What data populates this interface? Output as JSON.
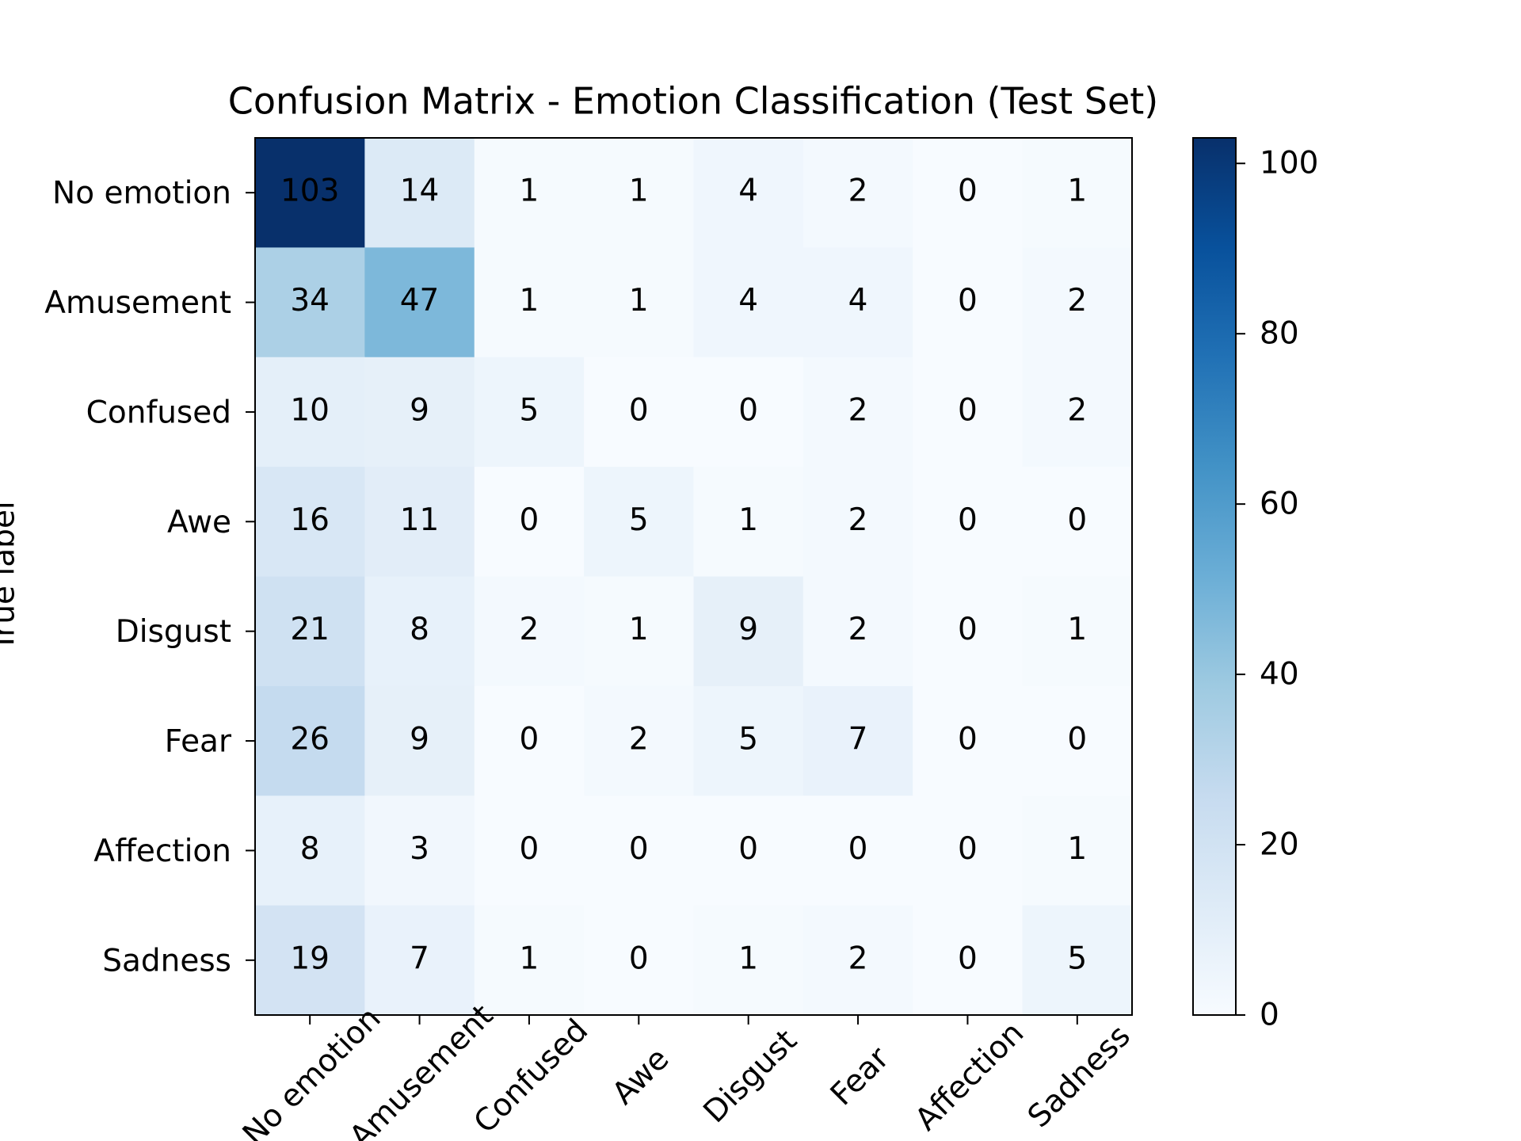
{
  "chart_data": {
    "type": "heatmap",
    "title": "Confusion Matrix - Emotion Classification (Test Set)",
    "ylabel": "True label",
    "x_categories": [
      "No emotion",
      "Amusement",
      "Confused",
      "Awe",
      "Disgust",
      "Fear",
      "Affection",
      "Sadness"
    ],
    "y_categories": [
      "No emotion",
      "Amusement",
      "Confused",
      "Awe",
      "Disgust",
      "Fear",
      "Affection",
      "Sadness"
    ],
    "values": [
      [
        103,
        14,
        1,
        1,
        4,
        2,
        0,
        1
      ],
      [
        34,
        47,
        1,
        1,
        4,
        4,
        0,
        2
      ],
      [
        10,
        9,
        5,
        0,
        0,
        2,
        0,
        2
      ],
      [
        16,
        11,
        0,
        5,
        1,
        2,
        0,
        0
      ],
      [
        21,
        8,
        2,
        1,
        9,
        2,
        0,
        1
      ],
      [
        26,
        9,
        0,
        2,
        5,
        7,
        0,
        0
      ],
      [
        8,
        3,
        0,
        0,
        0,
        0,
        0,
        1
      ],
      [
        19,
        7,
        1,
        0,
        1,
        2,
        0,
        5
      ]
    ],
    "cmap": [
      "#f7fbff",
      "#deebf7",
      "#c6dbef",
      "#9ecae1",
      "#6baed6",
      "#4292c6",
      "#2171b5",
      "#08519c",
      "#08306b"
    ],
    "clim": [
      0,
      103
    ],
    "cticks": [
      0,
      20,
      40,
      60,
      80,
      100
    ]
  }
}
